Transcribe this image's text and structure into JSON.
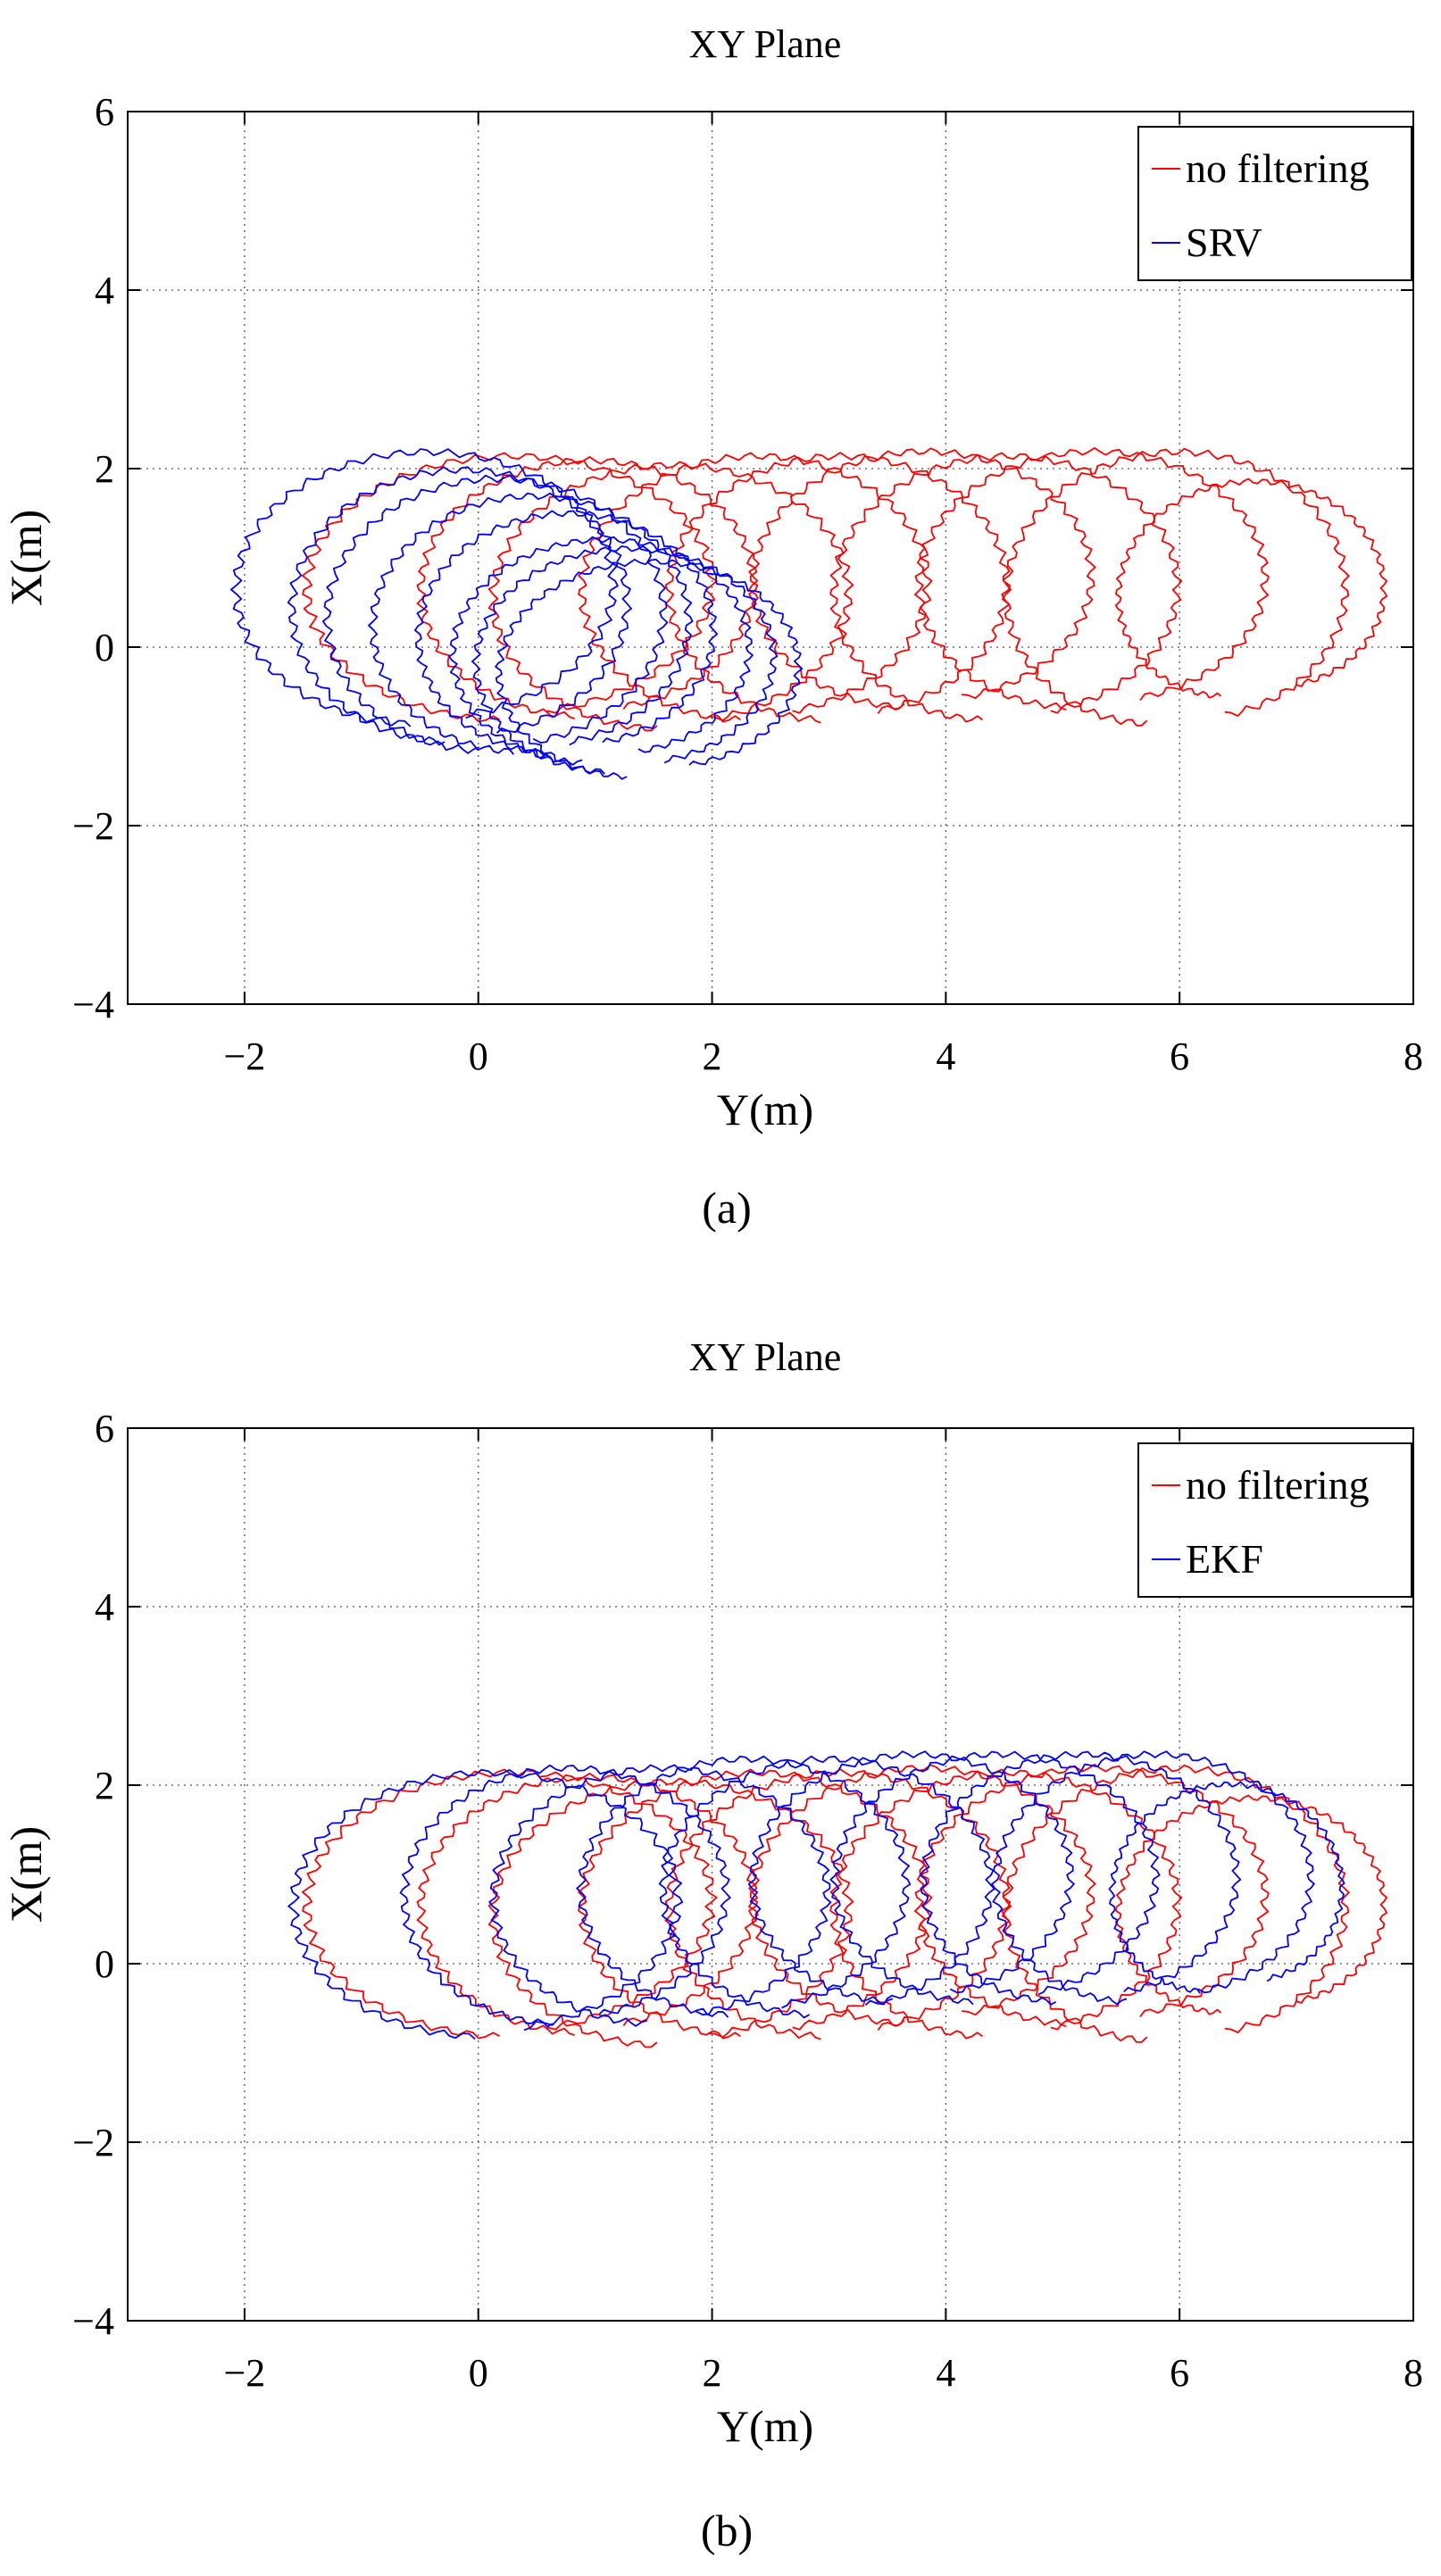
{
  "colors": {
    "no_filtering": "#ff0000",
    "filtered": "#0000ff",
    "axes": "#000000",
    "grid": "#555555"
  },
  "chart_data": [
    {
      "type": "line",
      "panel_label": "(a)",
      "title": "XY Plane",
      "xlabel": "Y(m)",
      "ylabel": "X(m)",
      "xlim": [
        -3,
        8
      ],
      "ylim": [
        -4,
        6
      ],
      "xticks": [
        -2,
        0,
        2,
        4,
        6,
        8
      ],
      "xtick_labels": [
        "−2",
        "0",
        "2",
        "4",
        "6",
        "8"
      ],
      "yticks": [
        -4,
        -2,
        0,
        2,
        4,
        6
      ],
      "ytick_labels": [
        "−4",
        "−2",
        "0",
        "2",
        "4",
        "6"
      ],
      "grid": true,
      "legend_position": "top-right",
      "series": [
        {
          "name": "no filtering",
          "color": "#ff0000",
          "loops": [
            {
              "cx": 0.2,
              "cy": 0.8,
              "rx": 1.85,
              "ry": 1.55,
              "start": -0.3,
              "end": 0.5
            },
            {
              "cx": 0.9,
              "cy": 0.8,
              "rx": 1.5,
              "ry": 1.5,
              "start": 0.1,
              "end": -0.6
            },
            {
              "cx": 1.6,
              "cy": 0.7,
              "rx": 1.6,
              "ry": 1.55,
              "start": 0.4,
              "end": -0.5
            },
            {
              "cx": 2.3,
              "cy": 0.8,
              "rx": 1.55,
              "ry": 1.55,
              "start": 0.8,
              "end": -0.3
            },
            {
              "cx": 3.0,
              "cy": 0.8,
              "rx": 1.5,
              "ry": 1.55,
              "start": 1.4,
              "end": -0.5
            },
            {
              "cx": 3.7,
              "cy": 0.9,
              "rx": 1.5,
              "ry": 1.5,
              "start": 1.9,
              "end": -0.3
            },
            {
              "cx": 4.4,
              "cy": 0.8,
              "rx": 1.5,
              "ry": 1.55,
              "start": 2.8,
              "end": -0.8
            },
            {
              "cx": 5.1,
              "cy": 0.9,
              "rx": 1.5,
              "ry": 1.5,
              "start": 3.8,
              "end": -0.5
            },
            {
              "cx": 5.8,
              "cy": 0.8,
              "rx": 1.45,
              "ry": 1.6,
              "start": 4.6,
              "end": -0.7
            },
            {
              "cx": 6.4,
              "cy": 0.8,
              "rx": 1.1,
              "ry": 1.25,
              "start": 6.0,
              "end": -0.3
            }
          ]
        },
        {
          "name": "SRV",
          "color": "#0000ff",
          "loops": [
            {
              "cx": -0.5,
              "cy": 0.8,
              "rx": 1.7,
              "ry": 1.6,
              "start": 0.2,
              "end": -0.6
            },
            {
              "cx": -0.2,
              "cy": 0.6,
              "rx": 1.5,
              "ry": 1.6,
              "start": 0.5,
              "end": -0.8
            },
            {
              "cx": 0.1,
              "cy": 0.5,
              "rx": 1.5,
              "ry": 1.6,
              "start": 0.8,
              "end": -0.9
            },
            {
              "cx": 0.4,
              "cy": 0.4,
              "rx": 1.4,
              "ry": 1.5,
              "start": 1.1,
              "end": -1.0
            },
            {
              "cx": 0.7,
              "cy": 0.3,
              "rx": 1.3,
              "ry": 1.4,
              "start": 1.3,
              "end": -1.1
            },
            {
              "cx": 1.0,
              "cy": 0.1,
              "rx": 1.3,
              "ry": 1.3,
              "start": 1.5,
              "end": -1.3
            },
            {
              "cx": 1.2,
              "cy": 0.0,
              "rx": 1.3,
              "ry": 1.3,
              "start": 1.7,
              "end": -1.4
            },
            {
              "cx": 1.4,
              "cy": -0.1,
              "rx": 1.3,
              "ry": 1.25,
              "start": 2.0,
              "end": -1.6
            }
          ]
        }
      ]
    },
    {
      "type": "line",
      "panel_label": "(b)",
      "title": "XY Plane",
      "xlabel": "Y(m)",
      "ylabel": "X(m)",
      "xlim": [
        -3,
        8
      ],
      "ylim": [
        -4,
        6
      ],
      "xticks": [
        -2,
        0,
        2,
        4,
        6,
        8
      ],
      "xtick_labels": [
        "−2",
        "0",
        "2",
        "4",
        "6",
        "8"
      ],
      "yticks": [
        -4,
        -2,
        0,
        2,
        4,
        6
      ],
      "ytick_labels": [
        "−4",
        "−2",
        "0",
        "2",
        "4",
        "6"
      ],
      "grid": true,
      "legend_position": "top-right",
      "series": [
        {
          "name": "no filtering",
          "color": "#ff0000",
          "loops": [
            {
              "cx": 0.2,
              "cy": 0.8,
              "rx": 1.85,
              "ry": 1.55,
              "start": -0.3,
              "end": 0.5
            },
            {
              "cx": 0.9,
              "cy": 0.8,
              "rx": 1.5,
              "ry": 1.5,
              "start": 0.1,
              "end": -0.6
            },
            {
              "cx": 1.6,
              "cy": 0.7,
              "rx": 1.6,
              "ry": 1.55,
              "start": 0.4,
              "end": -0.5
            },
            {
              "cx": 2.3,
              "cy": 0.8,
              "rx": 1.55,
              "ry": 1.55,
              "start": 0.8,
              "end": -0.3
            },
            {
              "cx": 3.0,
              "cy": 0.8,
              "rx": 1.5,
              "ry": 1.55,
              "start": 1.4,
              "end": -0.5
            },
            {
              "cx": 3.7,
              "cy": 0.9,
              "rx": 1.5,
              "ry": 1.5,
              "start": 1.9,
              "end": -0.3
            },
            {
              "cx": 4.4,
              "cy": 0.8,
              "rx": 1.5,
              "ry": 1.55,
              "start": 2.8,
              "end": -0.8
            },
            {
              "cx": 5.1,
              "cy": 0.9,
              "rx": 1.5,
              "ry": 1.5,
              "start": 3.8,
              "end": -0.5
            },
            {
              "cx": 5.8,
              "cy": 0.8,
              "rx": 1.45,
              "ry": 1.6,
              "start": 4.6,
              "end": -0.7
            },
            {
              "cx": 6.4,
              "cy": 0.8,
              "rx": 1.1,
              "ry": 1.25,
              "start": 6.0,
              "end": -0.3
            }
          ]
        },
        {
          "name": "EKF",
          "color": "#0000ff",
          "loops": [
            {
              "cx": 0.0,
              "cy": 0.8,
              "rx": 1.75,
              "ry": 1.55,
              "start": 0.0,
              "end": 0.3
            },
            {
              "cx": 0.7,
              "cy": 0.9,
              "rx": 1.45,
              "ry": 1.5,
              "start": 0.3,
              "end": -0.4
            },
            {
              "cx": 1.5,
              "cy": 0.9,
              "rx": 1.5,
              "ry": 1.5,
              "start": 0.6,
              "end": -0.3
            },
            {
              "cx": 2.2,
              "cy": 1.0,
              "rx": 1.45,
              "ry": 1.5,
              "start": 1.2,
              "end": -0.4
            },
            {
              "cx": 2.9,
              "cy": 1.0,
              "rx": 1.45,
              "ry": 1.5,
              "start": 1.6,
              "end": -0.5
            },
            {
              "cx": 3.6,
              "cy": 1.1,
              "rx": 1.4,
              "ry": 1.45,
              "start": 2.3,
              "end": -0.3
            },
            {
              "cx": 4.3,
              "cy": 1.1,
              "rx": 1.4,
              "ry": 1.45,
              "start": 3.0,
              "end": -0.5
            },
            {
              "cx": 5.0,
              "cy": 1.1,
              "rx": 1.35,
              "ry": 1.45,
              "start": 3.8,
              "end": -0.4
            },
            {
              "cx": 5.6,
              "cy": 1.1,
              "rx": 1.35,
              "ry": 1.45,
              "start": 4.5,
              "end": -0.3
            },
            {
              "cx": 6.2,
              "cy": 1.0,
              "rx": 0.95,
              "ry": 1.2,
              "start": 5.6,
              "end": 0.0
            }
          ]
        }
      ]
    }
  ]
}
